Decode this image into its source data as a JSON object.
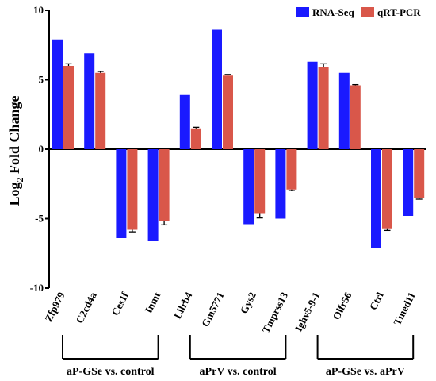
{
  "chart_data": {
    "type": "bar",
    "ylabel_main": "Log",
    "ylabel_sub": "2",
    "ylabel_rest": " Fold Change",
    "ylim": [
      -10,
      10
    ],
    "yticks": [
      -10,
      -5,
      0,
      5,
      10
    ],
    "ytick_labels": [
      "-10",
      "-5",
      "0",
      "5",
      "10"
    ],
    "categories": [
      "Zfp979",
      "C2cd4a",
      "Ces1f",
      "Inmt",
      "Lilrb4",
      "Gm5771",
      "Gys2",
      "Tmprss13",
      "Ighv5-9-1",
      "Olfr56",
      "Ctrl",
      "Tmed11"
    ],
    "series": [
      {
        "name": "RNA-Seq",
        "color": "#1a1aff",
        "values": [
          7.9,
          6.9,
          -6.4,
          -6.6,
          3.9,
          8.6,
          -5.4,
          -5.0,
          6.3,
          5.5,
          -7.1,
          -4.8
        ]
      },
      {
        "name": "qRT-PCR",
        "color": "#d9574a",
        "values": [
          6.0,
          5.5,
          -5.8,
          -5.2,
          1.5,
          5.3,
          -4.6,
          -2.9,
          5.9,
          4.6,
          -5.7,
          -3.5
        ]
      }
    ],
    "errors": [
      0.15,
      0.1,
      0.15,
      0.25,
      0.08,
      0.08,
      0.35,
      0.08,
      0.25,
      0.05,
      0.15,
      0.1
    ],
    "legend_position": "top-right",
    "groups": [
      {
        "label": "aP-GSe vs. control",
        "from": 0,
        "to": 3
      },
      {
        "label": "aPrV vs. control",
        "from": 4,
        "to": 7
      },
      {
        "label": "aP-GSe vs. aPrV",
        "from": 8,
        "to": 11
      }
    ]
  }
}
